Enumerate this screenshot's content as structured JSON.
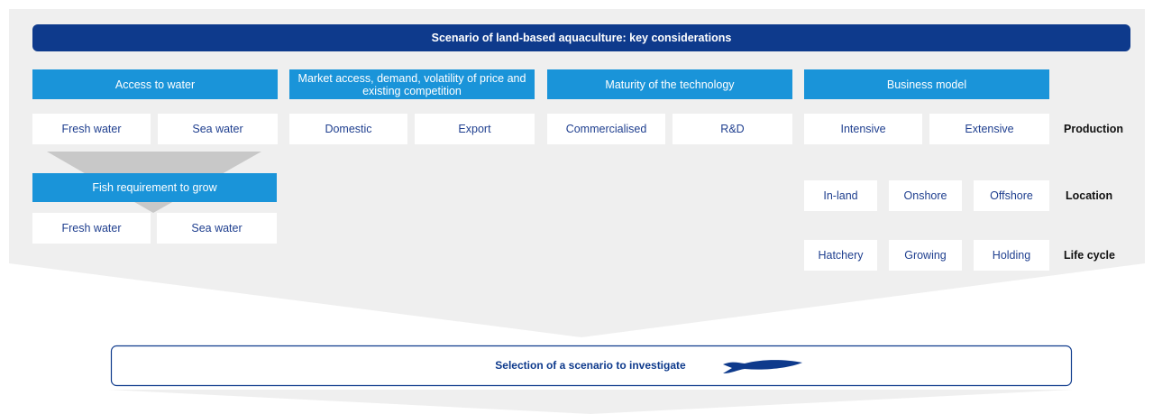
{
  "header": {
    "title": "Scenario of land-based aquaculture: key considerations"
  },
  "columns": [
    {
      "title": "Access to water",
      "options": [
        "Fresh water",
        "Sea water"
      ]
    },
    {
      "title": "Market access, demand, volatility of price and existing competition",
      "options": [
        "Domestic",
        "Export"
      ]
    },
    {
      "title": "Maturity of the technology",
      "options": [
        "Commercialised",
        "R&D"
      ]
    },
    {
      "title": "Business model",
      "options": [
        "Intensive",
        "Extensive"
      ]
    }
  ],
  "fish_requirement": {
    "title": "Fish requirement to grow",
    "options": [
      "Fresh water",
      "Sea water"
    ]
  },
  "location": {
    "label": "Location",
    "options": [
      "In-land",
      "Onshore",
      "Offshore"
    ]
  },
  "life_cycle": {
    "label": "Life cycle",
    "options": [
      "Hatchery",
      "Growing",
      "Holding"
    ]
  },
  "production_label": "Production",
  "selection": "Selection of a scenario to investigate"
}
